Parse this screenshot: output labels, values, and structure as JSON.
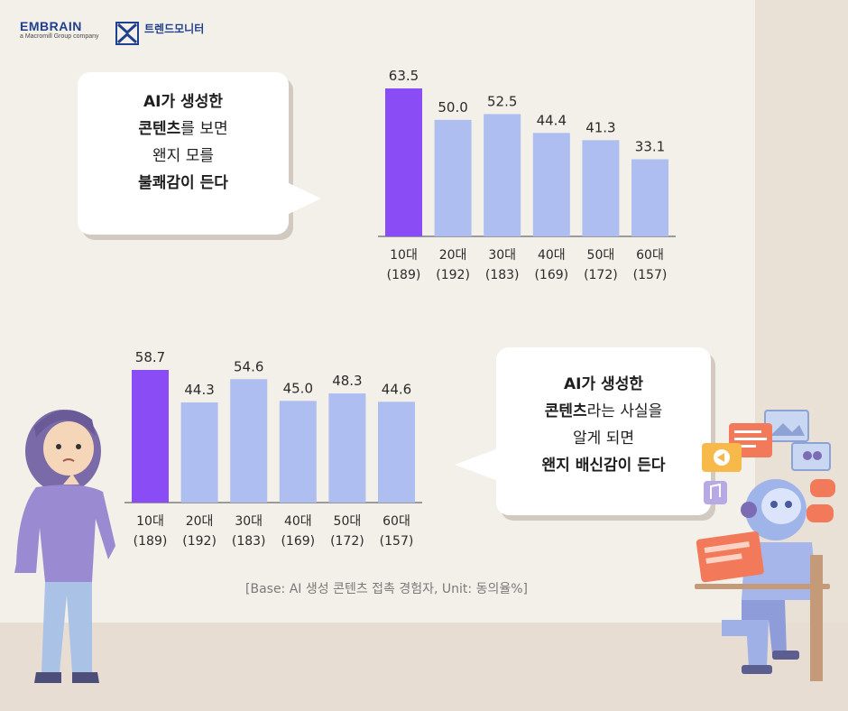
{
  "header": {
    "brand_name": "EMBRAIN",
    "brand_tagline": "a Macromill Group company",
    "partner_name": "트렌드모니터"
  },
  "bubble_top": {
    "line1": "AI가 생성한",
    "line2_bold": "콘텐츠",
    "line2_rest": "를 보면",
    "line3": "왠지 모를",
    "line4": "불쾌감이 든다"
  },
  "bubble_bottom": {
    "line1": "AI가 생성한",
    "line2_bold": "콘텐츠",
    "line2_rest": "라는 사실을",
    "line3": "알게 되면",
    "line4": "왠지 배신감이 든다"
  },
  "footnote": "[Base: AI 생성 콘텐츠 접촉 경험자, Unit: 동의율%]",
  "colors": {
    "highlight_bar": "#8a4cf5",
    "normal_bar": "#aebef0",
    "axis": "#9a9a9a"
  },
  "chart_data": [
    {
      "type": "bar",
      "categories": [
        "10대",
        "20대",
        "30대",
        "40대",
        "50대",
        "60대"
      ],
      "sample_sizes": [
        "(189)",
        "(192)",
        "(183)",
        "(169)",
        "(172)",
        "(157)"
      ],
      "values": [
        63.5,
        50.0,
        52.5,
        44.4,
        41.3,
        33.1
      ],
      "value_labels": [
        "63.5",
        "50.0",
        "52.5",
        "44.4",
        "41.3",
        "33.1"
      ],
      "highlight_index": 0,
      "ylim": [
        0,
        63.5
      ],
      "grid": false
    },
    {
      "type": "bar",
      "categories": [
        "10대",
        "20대",
        "30대",
        "40대",
        "50대",
        "60대"
      ],
      "sample_sizes": [
        "(189)",
        "(192)",
        "(183)",
        "(169)",
        "(172)",
        "(157)"
      ],
      "values": [
        58.7,
        44.3,
        54.6,
        45.0,
        48.3,
        44.6
      ],
      "value_labels": [
        "58.7",
        "44.3",
        "54.6",
        "45.0",
        "48.3",
        "44.6"
      ],
      "highlight_index": 0,
      "ylim": [
        0,
        58.7
      ],
      "grid": false
    }
  ]
}
